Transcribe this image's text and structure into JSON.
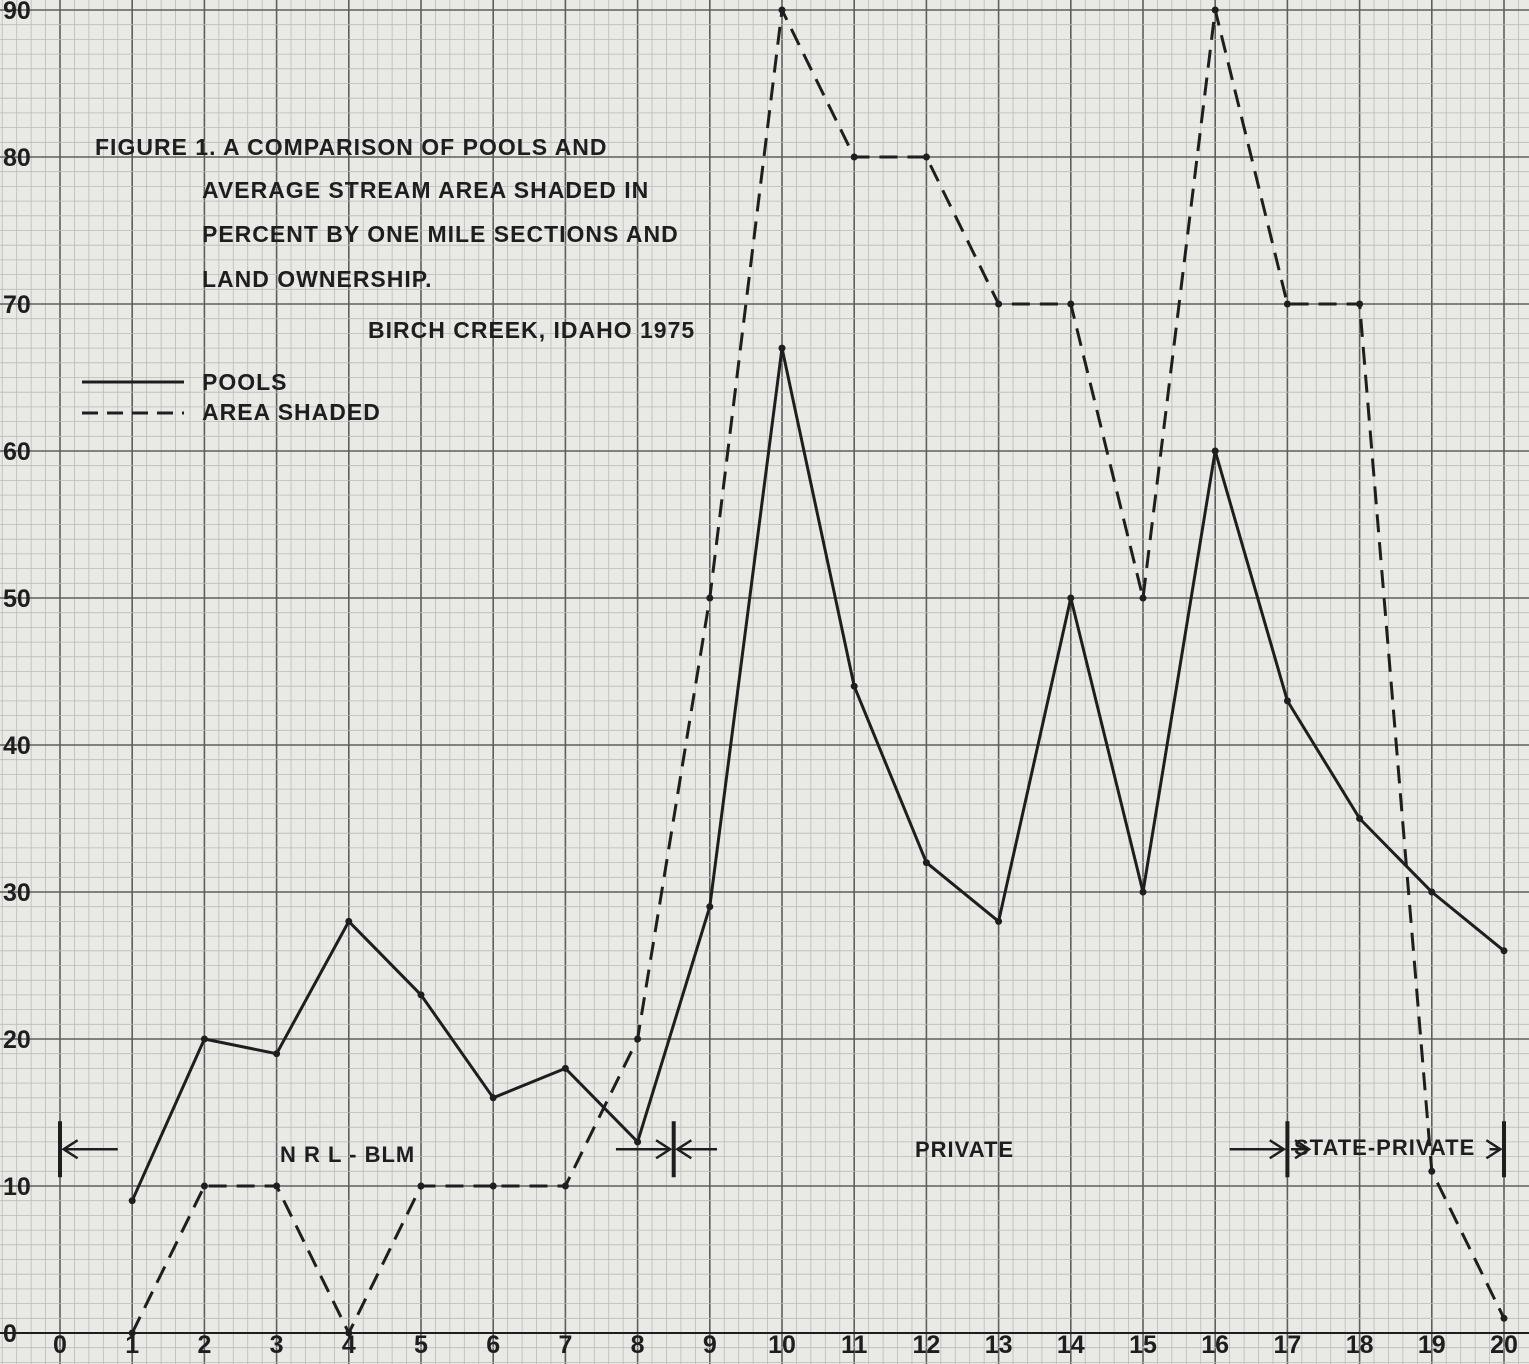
{
  "chart_data": {
    "type": "line",
    "title_lines": [
      "FIGURE  1.  A COMPARISON OF POOLS AND",
      "AVERAGE STREAM AREA SHADED IN",
      "PERCENT BY ONE MILE SECTIONS AND",
      "LAND OWNERSHIP."
    ],
    "subtitle": "BIRCH CREEK, IDAHO  1975",
    "xlabel": "",
    "ylabel": "",
    "xlim": [
      0,
      20
    ],
    "ylim": [
      0,
      90
    ],
    "x_ticks": [
      "0",
      "1",
      "2",
      "3",
      "4",
      "5",
      "6",
      "7",
      "8",
      "9",
      "10",
      "11",
      "12",
      "13",
      "14",
      "15",
      "16",
      "17",
      "18",
      "19",
      "20"
    ],
    "y_ticks": [
      "0",
      "10",
      "20",
      "30",
      "40",
      "50",
      "60",
      "70",
      "80",
      "90"
    ],
    "grid": true,
    "legend_position": "top-left",
    "series": [
      {
        "name": "POOLS",
        "style": "solid",
        "color": "#1e1e1e",
        "x": [
          1,
          2,
          3,
          4,
          5,
          6,
          7,
          8,
          9,
          10,
          11,
          12,
          13,
          14,
          15,
          16,
          17,
          18,
          19,
          20
        ],
        "values": [
          9,
          20,
          19,
          28,
          23,
          16,
          18,
          13,
          29,
          67,
          44,
          32,
          28,
          50,
          30,
          60,
          43,
          35,
          30,
          26
        ]
      },
      {
        "name": "AREA SHADED",
        "style": "dashed",
        "color": "#1e1e1e",
        "x": [
          1,
          2,
          3,
          4,
          5,
          6,
          7,
          8,
          9,
          10,
          11,
          12,
          13,
          14,
          15,
          16,
          17,
          18,
          19,
          20
        ],
        "values": [
          0,
          10,
          10,
          0,
          10,
          10,
          10,
          20,
          50,
          90,
          80,
          80,
          70,
          70,
          50,
          90,
          70,
          70,
          11,
          1
        ]
      }
    ],
    "ownership_zones": [
      {
        "label": "N R L - BLM",
        "from": 0,
        "to": 8.5
      },
      {
        "label": "PRIVATE",
        "from": 8.5,
        "to": 17
      },
      {
        "label": "STATE-PRIVATE",
        "from": 17,
        "to": 20
      }
    ]
  },
  "colors": {
    "paper": "#e9eae6",
    "grid_minor": "#b9bbb7",
    "grid_major": "#5d5f5c",
    "ink": "#1e1e1e"
  }
}
